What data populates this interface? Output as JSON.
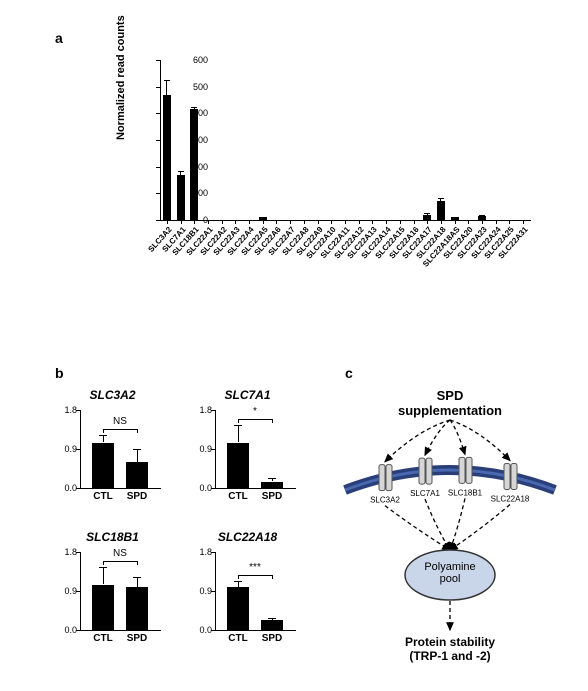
{
  "panelA": {
    "label": "a",
    "ylabel": "Normalized read counts",
    "ymax": 600,
    "ytick_step": 100,
    "categories": [
      "SLC3A2",
      "SLC7A1",
      "SLC18B1",
      "SLC22A1",
      "SLC22A2",
      "SLC22A3",
      "SLC22A4",
      "SLC22A5",
      "SLC22A6",
      "SLC22A7",
      "SLC22A8",
      "SLC22A9",
      "SLC22A10",
      "SLC22A11",
      "SLC22A12",
      "SLC22A13",
      "SLC22A14",
      "SLC22A15",
      "SLC22A16",
      "SLC22A17",
      "SLC22A18",
      "SLC22A18AS",
      "SLC22A20",
      "SLC22A23",
      "SLC22A24",
      "SLC22A25",
      "SLC22A31"
    ],
    "values": [
      470,
      170,
      415,
      0,
      0,
      0,
      0,
      10,
      0,
      0,
      0,
      0,
      0,
      0,
      0,
      0,
      0,
      0,
      0,
      20,
      70,
      10,
      0,
      15,
      0,
      0,
      0
    ],
    "errors": [
      55,
      15,
      8,
      0,
      0,
      0,
      0,
      3,
      0,
      0,
      0,
      0,
      0,
      0,
      0,
      0,
      0,
      0,
      0,
      5,
      14,
      3,
      0,
      4,
      0,
      0,
      0
    ],
    "bar_color": "#000000",
    "background": "#ffffff"
  },
  "panelB": {
    "label": "b",
    "ymax": 1.8,
    "yticks": [
      0.0,
      0.9,
      1.8
    ],
    "xlabels": [
      "CTL",
      "SPD"
    ],
    "charts": [
      {
        "title": "SLC3A2",
        "values": [
          1.05,
          0.6
        ],
        "errors": [
          0.18,
          0.3
        ],
        "sig": "NS"
      },
      {
        "title": "SLC7A1",
        "values": [
          1.05,
          0.15
        ],
        "errors": [
          0.4,
          0.08
        ],
        "sig": "*"
      },
      {
        "title": "SLC18B1",
        "values": [
          1.05,
          1.0
        ],
        "errors": [
          0.4,
          0.22
        ],
        "sig": "NS"
      },
      {
        "title": "SLC22A18",
        "values": [
          1.0,
          0.23
        ],
        "errors": [
          0.12,
          0.04
        ],
        "sig": "***"
      }
    ]
  },
  "panelC": {
    "label": "c",
    "title": "SPD\nsupplementation",
    "transporters": [
      "SLC3A2",
      "SLC7A1",
      "SLC18B1",
      "SLC22A18"
    ],
    "pool_label": "Polyamine\npool",
    "outcome": "Protein stability\n(TRP-1 and -2)",
    "membrane_color": "#2a3f7a",
    "membrane_highlight": "#4a68b0",
    "transporter_fill": "#d6d6d6",
    "transporter_stroke": "#555555",
    "pool_fill": "#c9d6ea",
    "pool_stroke": "#333333"
  }
}
